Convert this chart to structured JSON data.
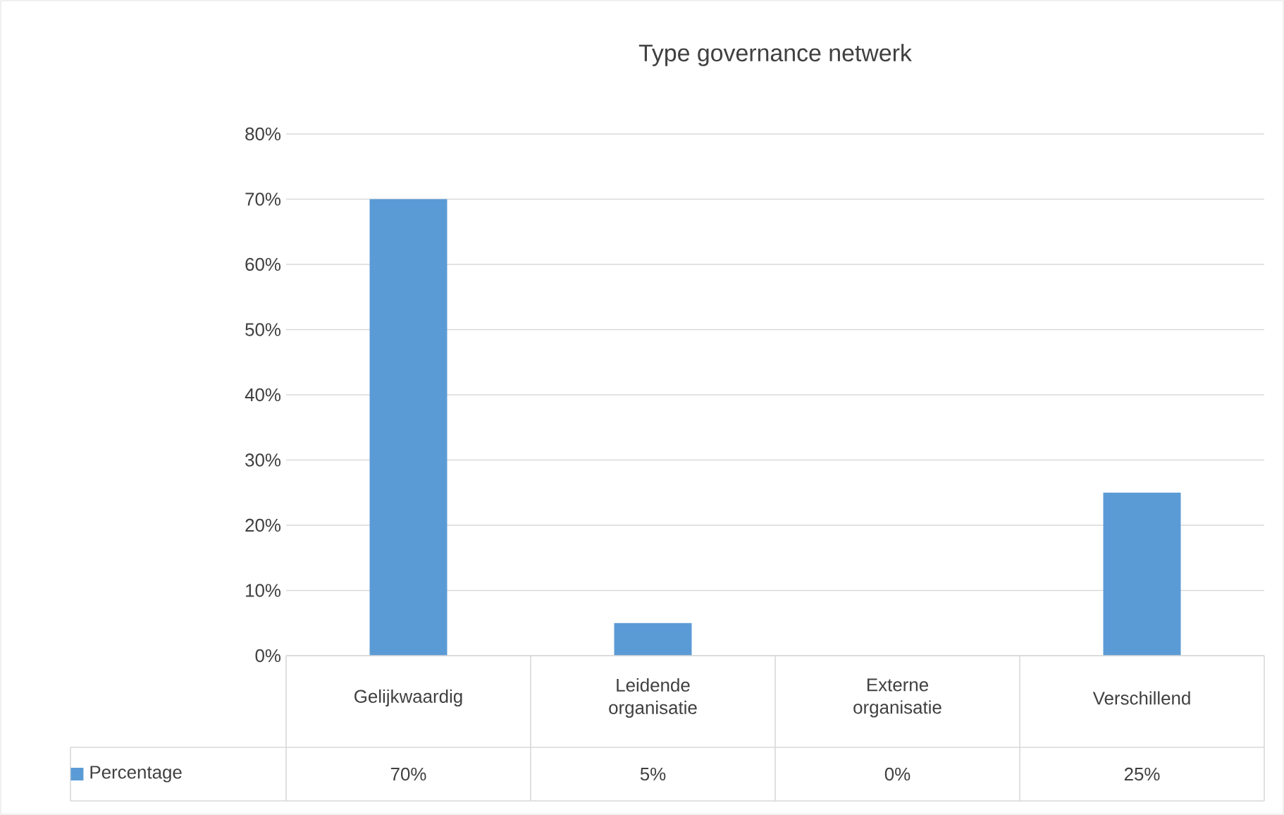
{
  "chart_data": {
    "type": "bar",
    "title": "Type governance netwerk",
    "categories": [
      "Gelijkwaardig",
      "Leidende organisatie",
      "Externe organisatie",
      "Verschillend"
    ],
    "series": [
      {
        "name": "Percentage",
        "color": "#5b9bd5",
        "values": [
          70,
          5,
          0,
          25
        ],
        "value_labels": [
          "70%",
          "5%",
          "0%",
          "25%"
        ]
      }
    ],
    "ylim": [
      0,
      80
    ],
    "yticks": [
      {
        "value": 0,
        "label": "0%"
      },
      {
        "value": 10,
        "label": "10%"
      },
      {
        "value": 20,
        "label": "20%"
      },
      {
        "value": 30,
        "label": "30%"
      },
      {
        "value": 40,
        "label": "40%"
      },
      {
        "value": 50,
        "label": "50%"
      },
      {
        "value": 60,
        "label": "60%"
      },
      {
        "value": 70,
        "label": "70%"
      },
      {
        "value": 80,
        "label": "80%"
      }
    ],
    "grid": "y",
    "legend": "bottom"
  }
}
